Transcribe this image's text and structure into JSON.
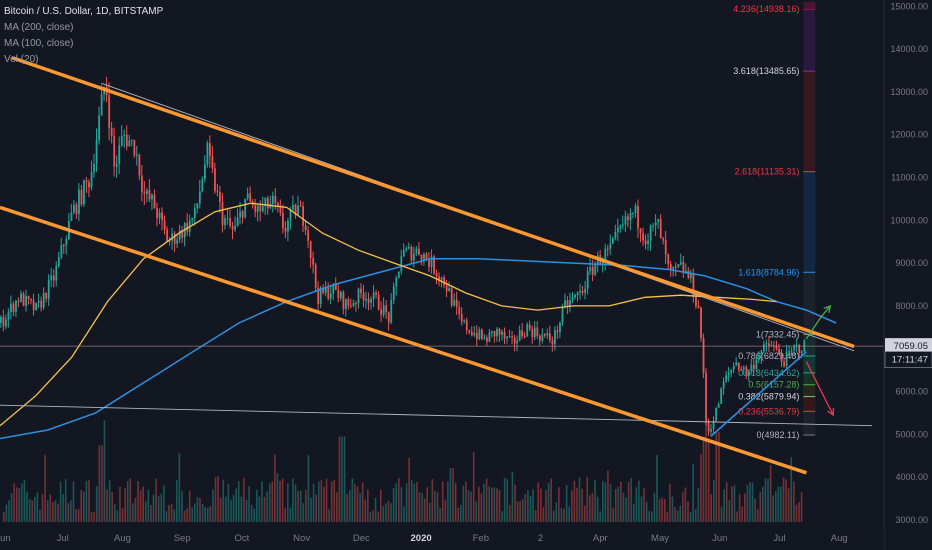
{
  "legend": {
    "title": "Bitcoin / U.S. Dollar, 1D, BITSTAMP",
    "ma200": "MA (200, close)",
    "ma100": "MA (100, close)",
    "vol": "Vol (20)"
  },
  "colors": {
    "background": "#131722",
    "up": "#26a69a",
    "down": "#ef5350",
    "channel": "#ff9830",
    "ma_yellow": "#f7c24a",
    "ma_blue": "#2d8fe0",
    "trend_line": "#b2b5be",
    "axis_text": "#787b86",
    "price_label": "#787b86",
    "arrow_green": "#4caf50",
    "arrow_red": "#f23645"
  },
  "chart_data": {
    "type": "candlestick",
    "symbol": "BTCUSD",
    "timeframe": "1D",
    "exchange": "BITSTAMP",
    "x_ticks": [
      "Jun",
      "Jul",
      "Aug",
      "Sep",
      "Oct",
      "Nov",
      "Dec",
      "2020",
      "Feb",
      "2",
      "Apr",
      "May",
      "Jun",
      "Jul",
      "Aug"
    ],
    "y_ticks": [
      3000,
      4000,
      5000,
      6000,
      7000,
      8000,
      9000,
      10000,
      11000,
      12000,
      13000,
      14000,
      15000
    ],
    "ylim": [
      2950,
      15100
    ],
    "xlim_months": [
      0,
      14.8
    ],
    "price_labels": [
      {
        "text": "7059.05",
        "value": 7059.05
      },
      {
        "text": "17:11:47",
        "value": 6745
      }
    ],
    "fibonacci": {
      "levels": [
        {
          "label": "4.236(14938.16)",
          "ratio": 4.236,
          "price": 14938.16,
          "color": "#e91e63",
          "text_color": "#f23645",
          "fill": "#4a1530"
        },
        {
          "label": "3.618(13485.65)",
          "ratio": 3.618,
          "price": 13485.65,
          "color": "#9c27b0",
          "text_color": "#d1d4dc",
          "fill": "#2d1840"
        },
        {
          "label": "2.618(11135.31)",
          "ratio": 2.618,
          "price": 11135.31,
          "color": "#f23645",
          "text_color": "#f23645",
          "fill": "#3a1a20"
        },
        {
          "label": "1.618(8784.96)",
          "ratio": 1.618,
          "price": 8784.96,
          "color": "#2196f3",
          "text_color": "#2196f3",
          "fill": "#142b47"
        },
        {
          "label": "1(7332.45)",
          "ratio": 1,
          "price": 7332.45,
          "color": "#787b86",
          "text_color": "#b2b5be",
          "fill": "#1e222d"
        },
        {
          "label": "0.786(6829.48)",
          "ratio": 0.786,
          "price": 6829.48,
          "color": "#26a69a",
          "text_color": "#b2b5be",
          "fill": "#163030"
        },
        {
          "label": "0.618(6434.62)",
          "ratio": 0.618,
          "price": 6434.62,
          "color": "#26a69a",
          "text_color": "#26a69a",
          "fill": "#153a36"
        },
        {
          "label": "0.5(6157.28)",
          "ratio": 0.5,
          "price": 6157.28,
          "color": "#4caf50",
          "text_color": "#4caf50",
          "fill": "#173523"
        },
        {
          "label": "0.382(5879.94)",
          "ratio": 0.382,
          "price": 5879.94,
          "color": "#81c784",
          "text_color": "#d1d4dc",
          "fill": "#2a2a1a"
        },
        {
          "label": "0.236(5536.79)",
          "ratio": 0.236,
          "price": 5536.79,
          "color": "#f23645",
          "text_color": "#f23645",
          "fill": "#3a1a1a"
        },
        {
          "label": "0(4982.11)",
          "ratio": 0,
          "price": 4982.11,
          "color": "#787b86",
          "text_color": "#b2b5be",
          "fill": "#1e222d"
        }
      ]
    },
    "price_path": [
      [
        0.0,
        7600
      ],
      [
        0.3,
        8200
      ],
      [
        0.6,
        7900
      ],
      [
        0.9,
        8700
      ],
      [
        1.2,
        10200
      ],
      [
        1.5,
        11000
      ],
      [
        1.75,
        13300
      ],
      [
        1.9,
        11200
      ],
      [
        2.05,
        12000
      ],
      [
        2.25,
        11700
      ],
      [
        2.4,
        10600
      ],
      [
        2.55,
        10400
      ],
      [
        2.8,
        9500
      ],
      [
        3.0,
        9700
      ],
      [
        3.25,
        10100
      ],
      [
        3.45,
        11600
      ],
      [
        3.7,
        10100
      ],
      [
        3.9,
        9700
      ],
      [
        4.1,
        10500
      ],
      [
        4.3,
        10200
      ],
      [
        4.55,
        10400
      ],
      [
        4.75,
        9800
      ],
      [
        4.95,
        10300
      ],
      [
        5.1,
        10000
      ],
      [
        5.3,
        8200
      ],
      [
        5.55,
        8400
      ],
      [
        5.8,
        8000
      ],
      [
        6.05,
        8300
      ],
      [
        6.3,
        8100
      ],
      [
        6.5,
        7700
      ],
      [
        6.7,
        9200
      ],
      [
        7.0,
        9300
      ],
      [
        7.2,
        9000
      ],
      [
        7.45,
        8500
      ],
      [
        7.7,
        7600
      ],
      [
        7.9,
        7400
      ],
      [
        8.1,
        7200
      ],
      [
        8.3,
        7400
      ],
      [
        8.55,
        7100
      ],
      [
        8.8,
        7500
      ],
      [
        9.05,
        7300
      ],
      [
        9.25,
        7200
      ],
      [
        9.45,
        8000
      ],
      [
        9.7,
        8300
      ],
      [
        9.95,
        9000
      ],
      [
        10.2,
        9300
      ],
      [
        10.4,
        9800
      ],
      [
        10.6,
        10200
      ],
      [
        10.8,
        9600
      ],
      [
        11.0,
        9900
      ],
      [
        11.2,
        8700
      ],
      [
        11.4,
        8900
      ],
      [
        11.55,
        8600
      ],
      [
        11.7,
        7800
      ],
      [
        11.82,
        5000
      ],
      [
        11.95,
        5400
      ],
      [
        12.1,
        6200
      ],
      [
        12.3,
        6700
      ],
      [
        12.5,
        6400
      ],
      [
        12.7,
        6900
      ],
      [
        12.9,
        7100
      ],
      [
        13.1,
        6700
      ],
      [
        13.3,
        7000
      ],
      [
        13.45,
        7059
      ]
    ],
    "ma200_path": [
      [
        0.0,
        4900
      ],
      [
        0.8,
        5100
      ],
      [
        1.6,
        5500
      ],
      [
        2.4,
        6200
      ],
      [
        3.2,
        6900
      ],
      [
        4.0,
        7600
      ],
      [
        4.8,
        8100
      ],
      [
        5.6,
        8500
      ],
      [
        6.4,
        8800
      ],
      [
        7.2,
        9100
      ],
      [
        8.0,
        9100
      ],
      [
        8.8,
        9050
      ],
      [
        9.6,
        9000
      ],
      [
        10.4,
        8950
      ],
      [
        11.2,
        8850
      ],
      [
        11.8,
        8700
      ],
      [
        12.5,
        8400
      ],
      [
        13.0,
        8100
      ],
      [
        13.5,
        7900
      ],
      [
        14.0,
        7600
      ]
    ],
    "ma100_path": [
      [
        0.0,
        5200
      ],
      [
        0.6,
        5900
      ],
      [
        1.2,
        6800
      ],
      [
        1.8,
        8100
      ],
      [
        2.4,
        9100
      ],
      [
        3.0,
        9700
      ],
      [
        3.6,
        10200
      ],
      [
        4.2,
        10400
      ],
      [
        4.8,
        10300
      ],
      [
        5.4,
        9700
      ],
      [
        6.0,
        9300
      ],
      [
        6.6,
        9000
      ],
      [
        7.2,
        8700
      ],
      [
        7.8,
        8300
      ],
      [
        8.4,
        8000
      ],
      [
        9.0,
        7900
      ],
      [
        9.6,
        8000
      ],
      [
        10.2,
        8000
      ],
      [
        10.8,
        8200
      ],
      [
        11.4,
        8250
      ],
      [
        12.0,
        8200
      ],
      [
        12.6,
        8150
      ],
      [
        13.0,
        8100
      ]
    ],
    "channel_upper": {
      "from": [
        0.2,
        13800
      ],
      "to": [
        14.3,
        7050
      ]
    },
    "channel_lower": {
      "from": [
        0.0,
        10300
      ],
      "to": [
        13.5,
        4100
      ]
    },
    "thin_trend_line": {
      "from": [
        1.7,
        13200
      ],
      "to": [
        14.3,
        6950
      ]
    },
    "horizontal_support": {
      "from": [
        0,
        5680
      ],
      "to": [
        14.6,
        5200
      ]
    },
    "rising_trend_line": {
      "from": [
        11.9,
        4950
      ],
      "to": [
        13.5,
        6930
      ]
    },
    "projection_up": {
      "points": [
        [
          13.5,
          7230
        ],
        [
          13.75,
          7750
        ],
        [
          13.9,
          8000
        ]
      ],
      "color": "green"
    },
    "projection_down": {
      "points": [
        [
          13.5,
          6700
        ],
        [
          13.75,
          6000
        ],
        [
          13.95,
          5450
        ]
      ],
      "color": "red"
    },
    "volume_spikes": [
      [
        1.7,
        0.85
      ],
      [
        5.7,
        0.95
      ],
      [
        7.55,
        0.6
      ],
      [
        11.8,
        0.9
      ],
      [
        12.0,
        1.0
      ]
    ]
  }
}
